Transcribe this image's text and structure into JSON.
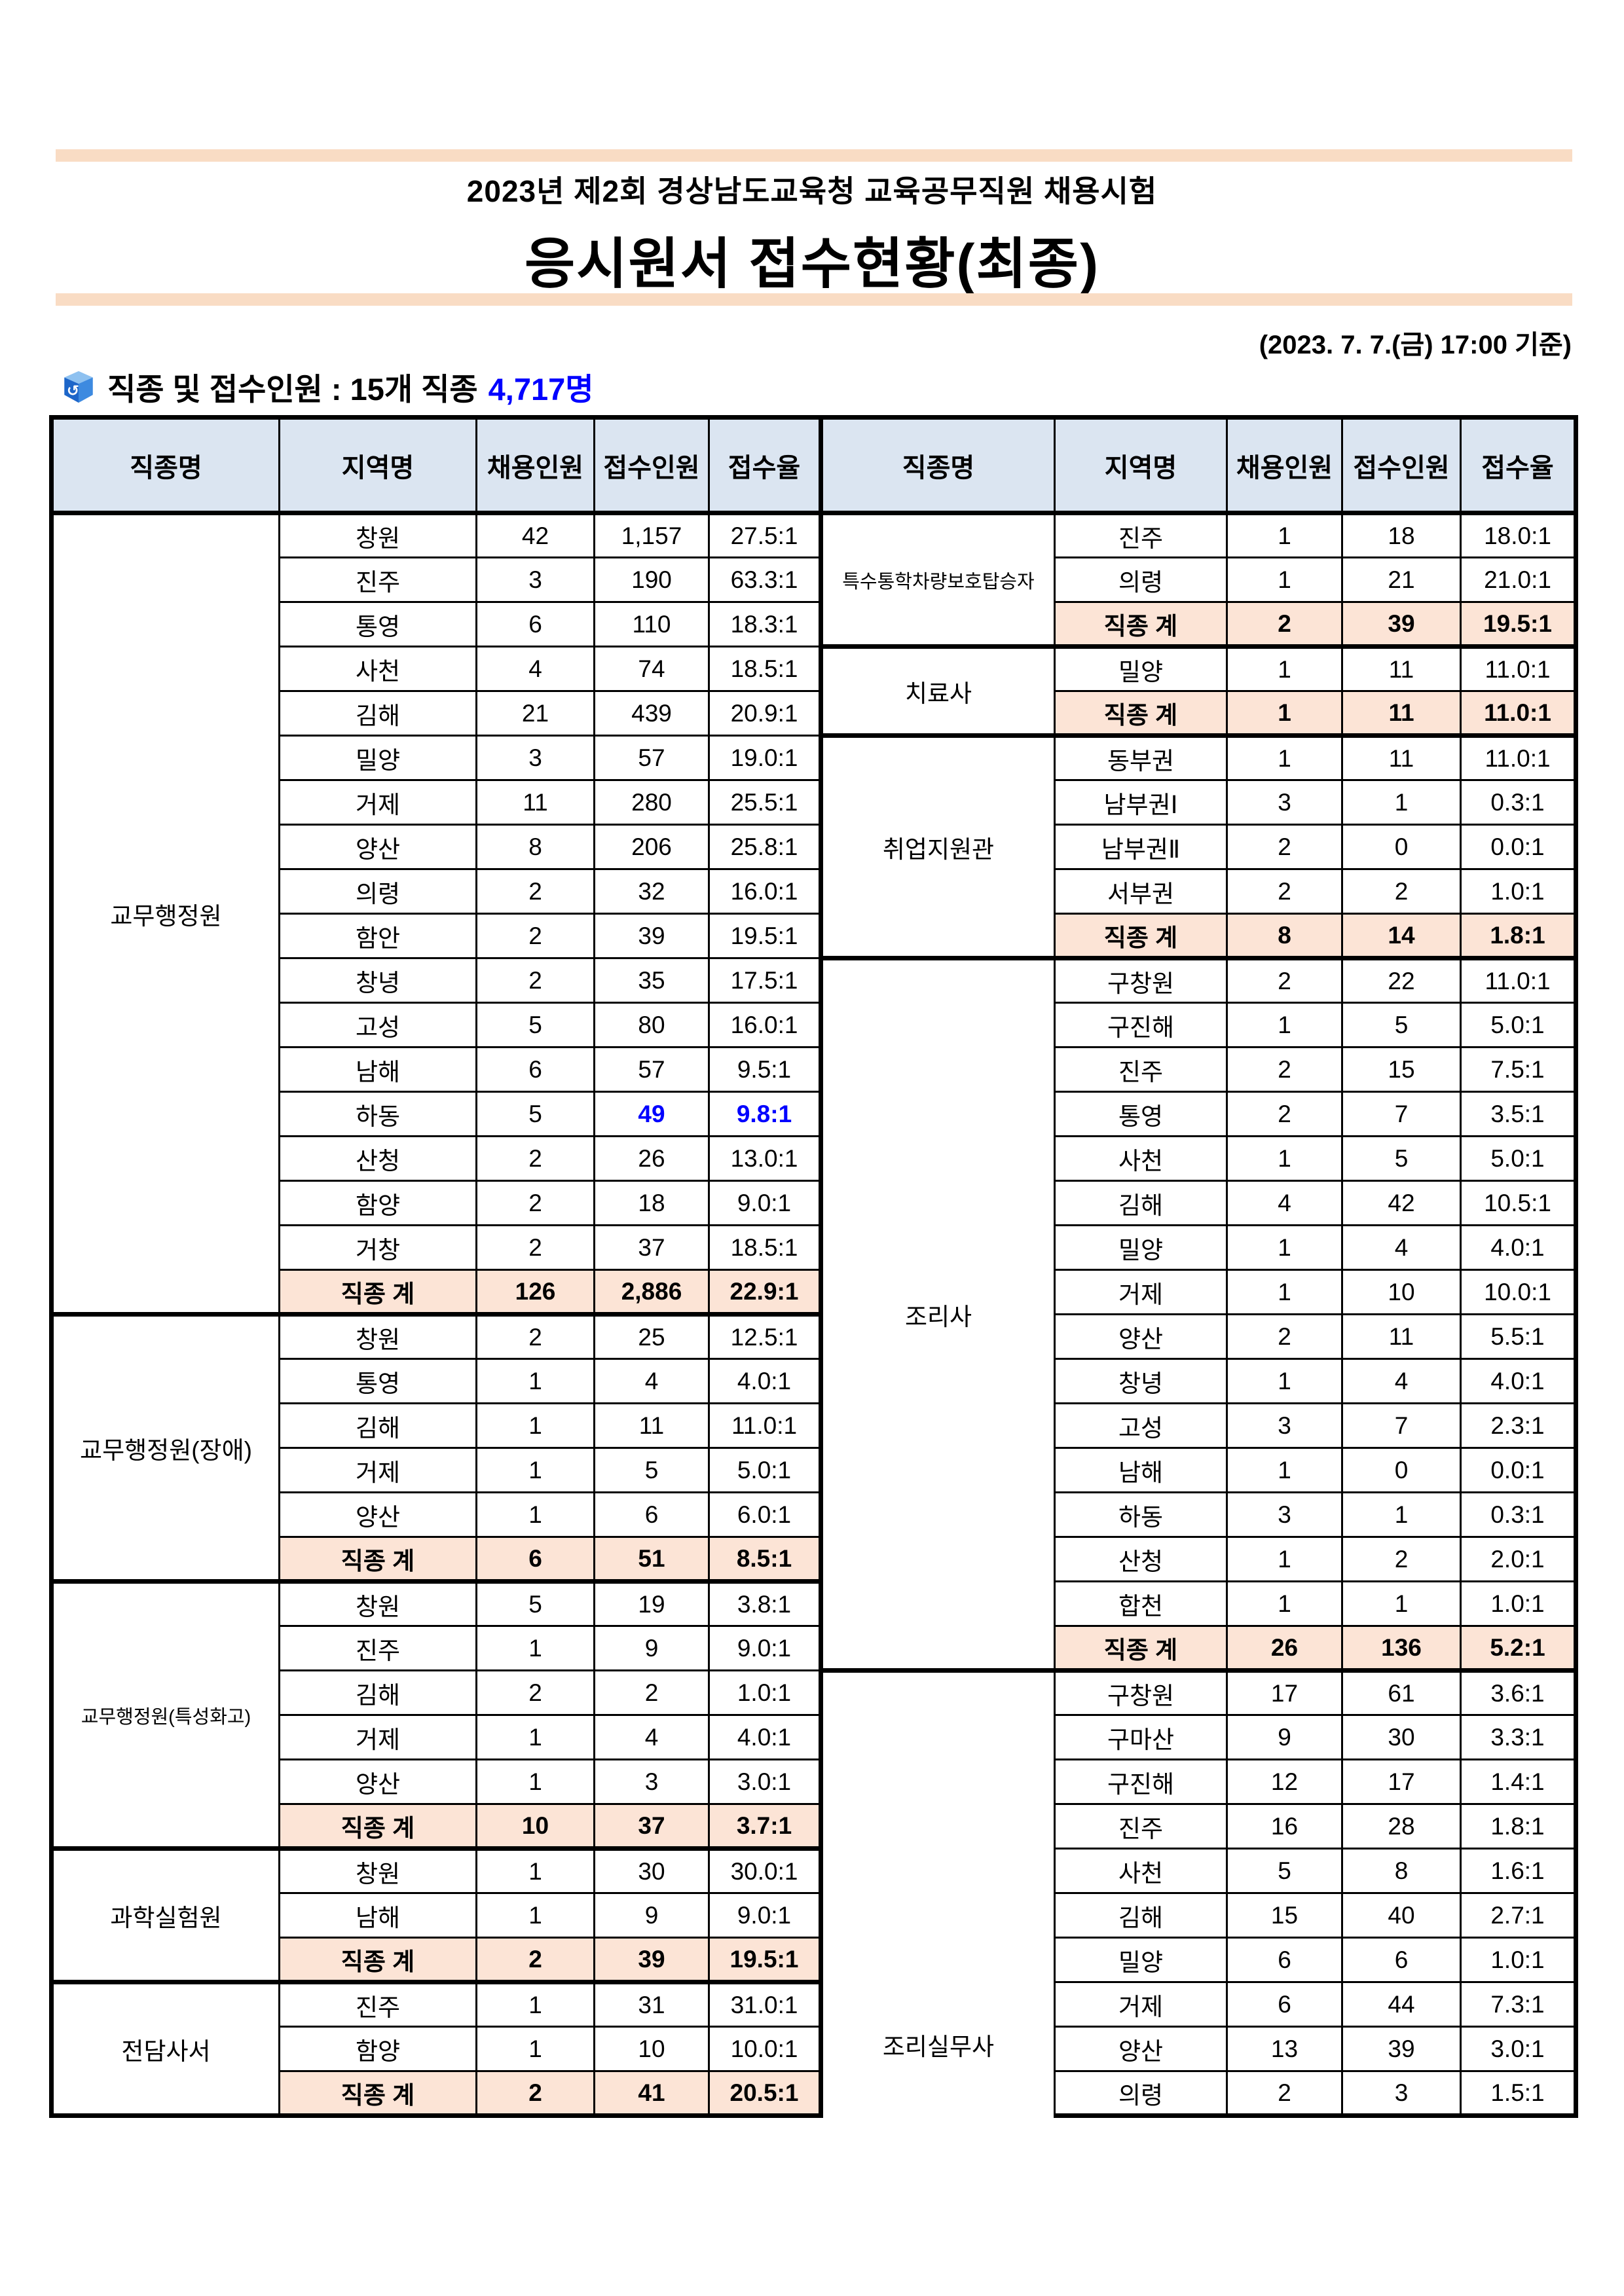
{
  "colors": {
    "accent_bar": "#f9dcc4",
    "table_header_bg": "#dbe5f1",
    "total_row_bg": "#fce4d6",
    "highlight_blue": "#0000ff",
    "border": "#000000"
  },
  "title": {
    "line1": "2023년 제2회 경상남도교육청 교육공무직원 채용시험",
    "line2": "응시원서 접수현황(최종)",
    "date_note": "(2023. 7. 7.(금) 17:00 기준)"
  },
  "summary": {
    "label": "직종 및 접수인원 : 15개 직종",
    "count": "4,717명"
  },
  "table": {
    "headers": [
      "직종명",
      "지역명",
      "채용인원",
      "접수인원",
      "접수율"
    ],
    "total_label": "직종 계",
    "left": {
      "sections": [
        {
          "name": "교무행정원",
          "rows": [
            {
              "region": "창원",
              "quota": "42",
              "applicants": "1,157",
              "ratio": "27.5:1"
            },
            {
              "region": "진주",
              "quota": "3",
              "applicants": "190",
              "ratio": "63.3:1"
            },
            {
              "region": "통영",
              "quota": "6",
              "applicants": "110",
              "ratio": "18.3:1"
            },
            {
              "region": "사천",
              "quota": "4",
              "applicants": "74",
              "ratio": "18.5:1"
            },
            {
              "region": "김해",
              "quota": "21",
              "applicants": "439",
              "ratio": "20.9:1"
            },
            {
              "region": "밀양",
              "quota": "3",
              "applicants": "57",
              "ratio": "19.0:1"
            },
            {
              "region": "거제",
              "quota": "11",
              "applicants": "280",
              "ratio": "25.5:1"
            },
            {
              "region": "양산",
              "quota": "8",
              "applicants": "206",
              "ratio": "25.8:1"
            },
            {
              "region": "의령",
              "quota": "2",
              "applicants": "32",
              "ratio": "16.0:1"
            },
            {
              "region": "함안",
              "quota": "2",
              "applicants": "39",
              "ratio": "19.5:1"
            },
            {
              "region": "창녕",
              "quota": "2",
              "applicants": "35",
              "ratio": "17.5:1"
            },
            {
              "region": "고성",
              "quota": "5",
              "applicants": "80",
              "ratio": "16.0:1"
            },
            {
              "region": "남해",
              "quota": "6",
              "applicants": "57",
              "ratio": "9.5:1"
            },
            {
              "region": "하동",
              "quota": "5",
              "applicants": "49",
              "ratio": "9.8:1",
              "blue": true
            },
            {
              "region": "산청",
              "quota": "2",
              "applicants": "26",
              "ratio": "13.0:1"
            },
            {
              "region": "함양",
              "quota": "2",
              "applicants": "18",
              "ratio": "9.0:1"
            },
            {
              "region": "거창",
              "quota": "2",
              "applicants": "37",
              "ratio": "18.5:1"
            }
          ],
          "total": {
            "quota": "126",
            "applicants": "2,886",
            "ratio": "22.9:1"
          }
        },
        {
          "name": "교무행정원(장애)",
          "rows": [
            {
              "region": "창원",
              "quota": "2",
              "applicants": "25",
              "ratio": "12.5:1"
            },
            {
              "region": "통영",
              "quota": "1",
              "applicants": "4",
              "ratio": "4.0:1"
            },
            {
              "region": "김해",
              "quota": "1",
              "applicants": "11",
              "ratio": "11.0:1"
            },
            {
              "region": "거제",
              "quota": "1",
              "applicants": "5",
              "ratio": "5.0:1"
            },
            {
              "region": "양산",
              "quota": "1",
              "applicants": "6",
              "ratio": "6.0:1"
            }
          ],
          "total": {
            "quota": "6",
            "applicants": "51",
            "ratio": "8.5:1"
          }
        },
        {
          "name": "교무행정원(특성화고)",
          "small": true,
          "rows": [
            {
              "region": "창원",
              "quota": "5",
              "applicants": "19",
              "ratio": "3.8:1"
            },
            {
              "region": "진주",
              "quota": "1",
              "applicants": "9",
              "ratio": "9.0:1"
            },
            {
              "region": "김해",
              "quota": "2",
              "applicants": "2",
              "ratio": "1.0:1"
            },
            {
              "region": "거제",
              "quota": "1",
              "applicants": "4",
              "ratio": "4.0:1"
            },
            {
              "region": "양산",
              "quota": "1",
              "applicants": "3",
              "ratio": "3.0:1"
            }
          ],
          "total": {
            "quota": "10",
            "applicants": "37",
            "ratio": "3.7:1"
          }
        },
        {
          "name": "과학실험원",
          "rows": [
            {
              "region": "창원",
              "quota": "1",
              "applicants": "30",
              "ratio": "30.0:1"
            },
            {
              "region": "남해",
              "quota": "1",
              "applicants": "9",
              "ratio": "9.0:1"
            }
          ],
          "total": {
            "quota": "2",
            "applicants": "39",
            "ratio": "19.5:1"
          }
        },
        {
          "name": "전담사서",
          "rows": [
            {
              "region": "진주",
              "quota": "1",
              "applicants": "31",
              "ratio": "31.0:1"
            },
            {
              "region": "함양",
              "quota": "1",
              "applicants": "10",
              "ratio": "10.0:1"
            }
          ],
          "total": {
            "quota": "2",
            "applicants": "41",
            "ratio": "20.5:1"
          }
        }
      ]
    },
    "right": {
      "sections": [
        {
          "name": "특수통학차량보호탑승자",
          "small": true,
          "rows": [
            {
              "region": "진주",
              "quota": "1",
              "applicants": "18",
              "ratio": "18.0:1"
            },
            {
              "region": "의령",
              "quota": "1",
              "applicants": "21",
              "ratio": "21.0:1"
            }
          ],
          "total": {
            "quota": "2",
            "applicants": "39",
            "ratio": "19.5:1"
          }
        },
        {
          "name": "치료사",
          "rows": [
            {
              "region": "밀양",
              "quota": "1",
              "applicants": "11",
              "ratio": "11.0:1"
            }
          ],
          "total": {
            "quota": "1",
            "applicants": "11",
            "ratio": "11.0:1"
          }
        },
        {
          "name": "취업지원관",
          "rows": [
            {
              "region": "동부권",
              "quota": "1",
              "applicants": "11",
              "ratio": "11.0:1"
            },
            {
              "region": "남부권Ⅰ",
              "quota": "3",
              "applicants": "1",
              "ratio": "0.3:1"
            },
            {
              "region": "남부권Ⅱ",
              "quota": "2",
              "applicants": "0",
              "ratio": "0.0:1"
            },
            {
              "region": "서부권",
              "quota": "2",
              "applicants": "2",
              "ratio": "1.0:1"
            }
          ],
          "total": {
            "quota": "8",
            "applicants": "14",
            "ratio": "1.8:1"
          }
        },
        {
          "name": "조리사",
          "rows": [
            {
              "region": "구창원",
              "quota": "2",
              "applicants": "22",
              "ratio": "11.0:1"
            },
            {
              "region": "구진해",
              "quota": "1",
              "applicants": "5",
              "ratio": "5.0:1"
            },
            {
              "region": "진주",
              "quota": "2",
              "applicants": "15",
              "ratio": "7.5:1"
            },
            {
              "region": "통영",
              "quota": "2",
              "applicants": "7",
              "ratio": "3.5:1"
            },
            {
              "region": "사천",
              "quota": "1",
              "applicants": "5",
              "ratio": "5.0:1"
            },
            {
              "region": "김해",
              "quota": "4",
              "applicants": "42",
              "ratio": "10.5:1"
            },
            {
              "region": "밀양",
              "quota": "1",
              "applicants": "4",
              "ratio": "4.0:1"
            },
            {
              "region": "거제",
              "quota": "1",
              "applicants": "10",
              "ratio": "10.0:1"
            },
            {
              "region": "양산",
              "quota": "2",
              "applicants": "11",
              "ratio": "5.5:1"
            },
            {
              "region": "창녕",
              "quota": "1",
              "applicants": "4",
              "ratio": "4.0:1"
            },
            {
              "region": "고성",
              "quota": "3",
              "applicants": "7",
              "ratio": "2.3:1"
            },
            {
              "region": "남해",
              "quota": "1",
              "applicants": "0",
              "ratio": "0.0:1"
            },
            {
              "region": "하동",
              "quota": "3",
              "applicants": "1",
              "ratio": "0.3:1"
            },
            {
              "region": "산청",
              "quota": "1",
              "applicants": "2",
              "ratio": "2.0:1"
            },
            {
              "region": "합천",
              "quota": "1",
              "applicants": "1",
              "ratio": "1.0:1"
            }
          ],
          "total": {
            "quota": "26",
            "applicants": "136",
            "ratio": "5.2:1"
          }
        },
        {
          "name": "조리실무사",
          "name_align_bottom": true,
          "open_bottom": true,
          "rows": [
            {
              "region": "구창원",
              "quota": "17",
              "applicants": "61",
              "ratio": "3.6:1"
            },
            {
              "region": "구마산",
              "quota": "9",
              "applicants": "30",
              "ratio": "3.3:1"
            },
            {
              "region": "구진해",
              "quota": "12",
              "applicants": "17",
              "ratio": "1.4:1"
            },
            {
              "region": "진주",
              "quota": "16",
              "applicants": "28",
              "ratio": "1.8:1"
            },
            {
              "region": "사천",
              "quota": "5",
              "applicants": "8",
              "ratio": "1.6:1"
            },
            {
              "region": "김해",
              "quota": "15",
              "applicants": "40",
              "ratio": "2.7:1"
            },
            {
              "region": "밀양",
              "quota": "6",
              "applicants": "6",
              "ratio": "1.0:1"
            },
            {
              "region": "거제",
              "quota": "6",
              "applicants": "44",
              "ratio": "7.3:1"
            },
            {
              "region": "양산",
              "quota": "13",
              "applicants": "39",
              "ratio": "3.0:1"
            },
            {
              "region": "의령",
              "quota": "2",
              "applicants": "3",
              "ratio": "1.5:1"
            }
          ]
        }
      ]
    }
  }
}
